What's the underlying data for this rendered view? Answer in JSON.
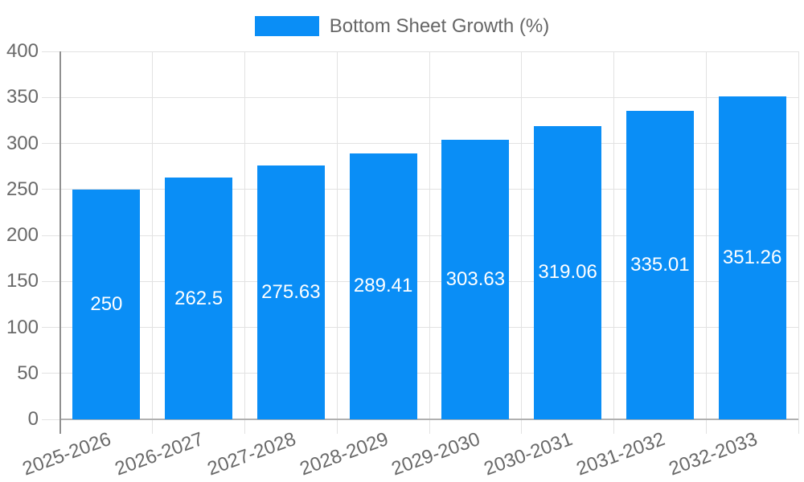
{
  "chart_data": {
    "type": "bar",
    "title": "",
    "legend_position": "top-center",
    "categories": [
      "2025-2026",
      "2026-2027",
      "2027-2028",
      "2028-2029",
      "2029-2030",
      "2030-2031",
      "2031-2032",
      "2032-2033"
    ],
    "series": [
      {
        "name": "Bottom Sheet Growth (%)",
        "color": "#0a8ef6",
        "values": [
          250,
          262.5,
          275.63,
          289.41,
          303.63,
          319.06,
          335.01,
          351.26
        ],
        "value_labels": [
          "250",
          "262.5",
          "275.63",
          "289.41",
          "303.63",
          "319.06",
          "335.01",
          "351.26"
        ]
      }
    ],
    "xlabel": "",
    "ylabel": "",
    "ylim": [
      0,
      400
    ],
    "yticks": [
      0,
      50,
      100,
      150,
      200,
      250,
      300,
      350,
      400
    ],
    "grid": true,
    "x_label_rotation_deg": -20
  },
  "colors": {
    "bar": "#0a8ef6",
    "grid_line": "#e2e2e2",
    "axis_line": "#909090",
    "baseline": "#b0b0b0",
    "axis_text": "#696969",
    "legend_text": "#666666",
    "bar_label": "#ffffff",
    "background": "#ffffff"
  }
}
